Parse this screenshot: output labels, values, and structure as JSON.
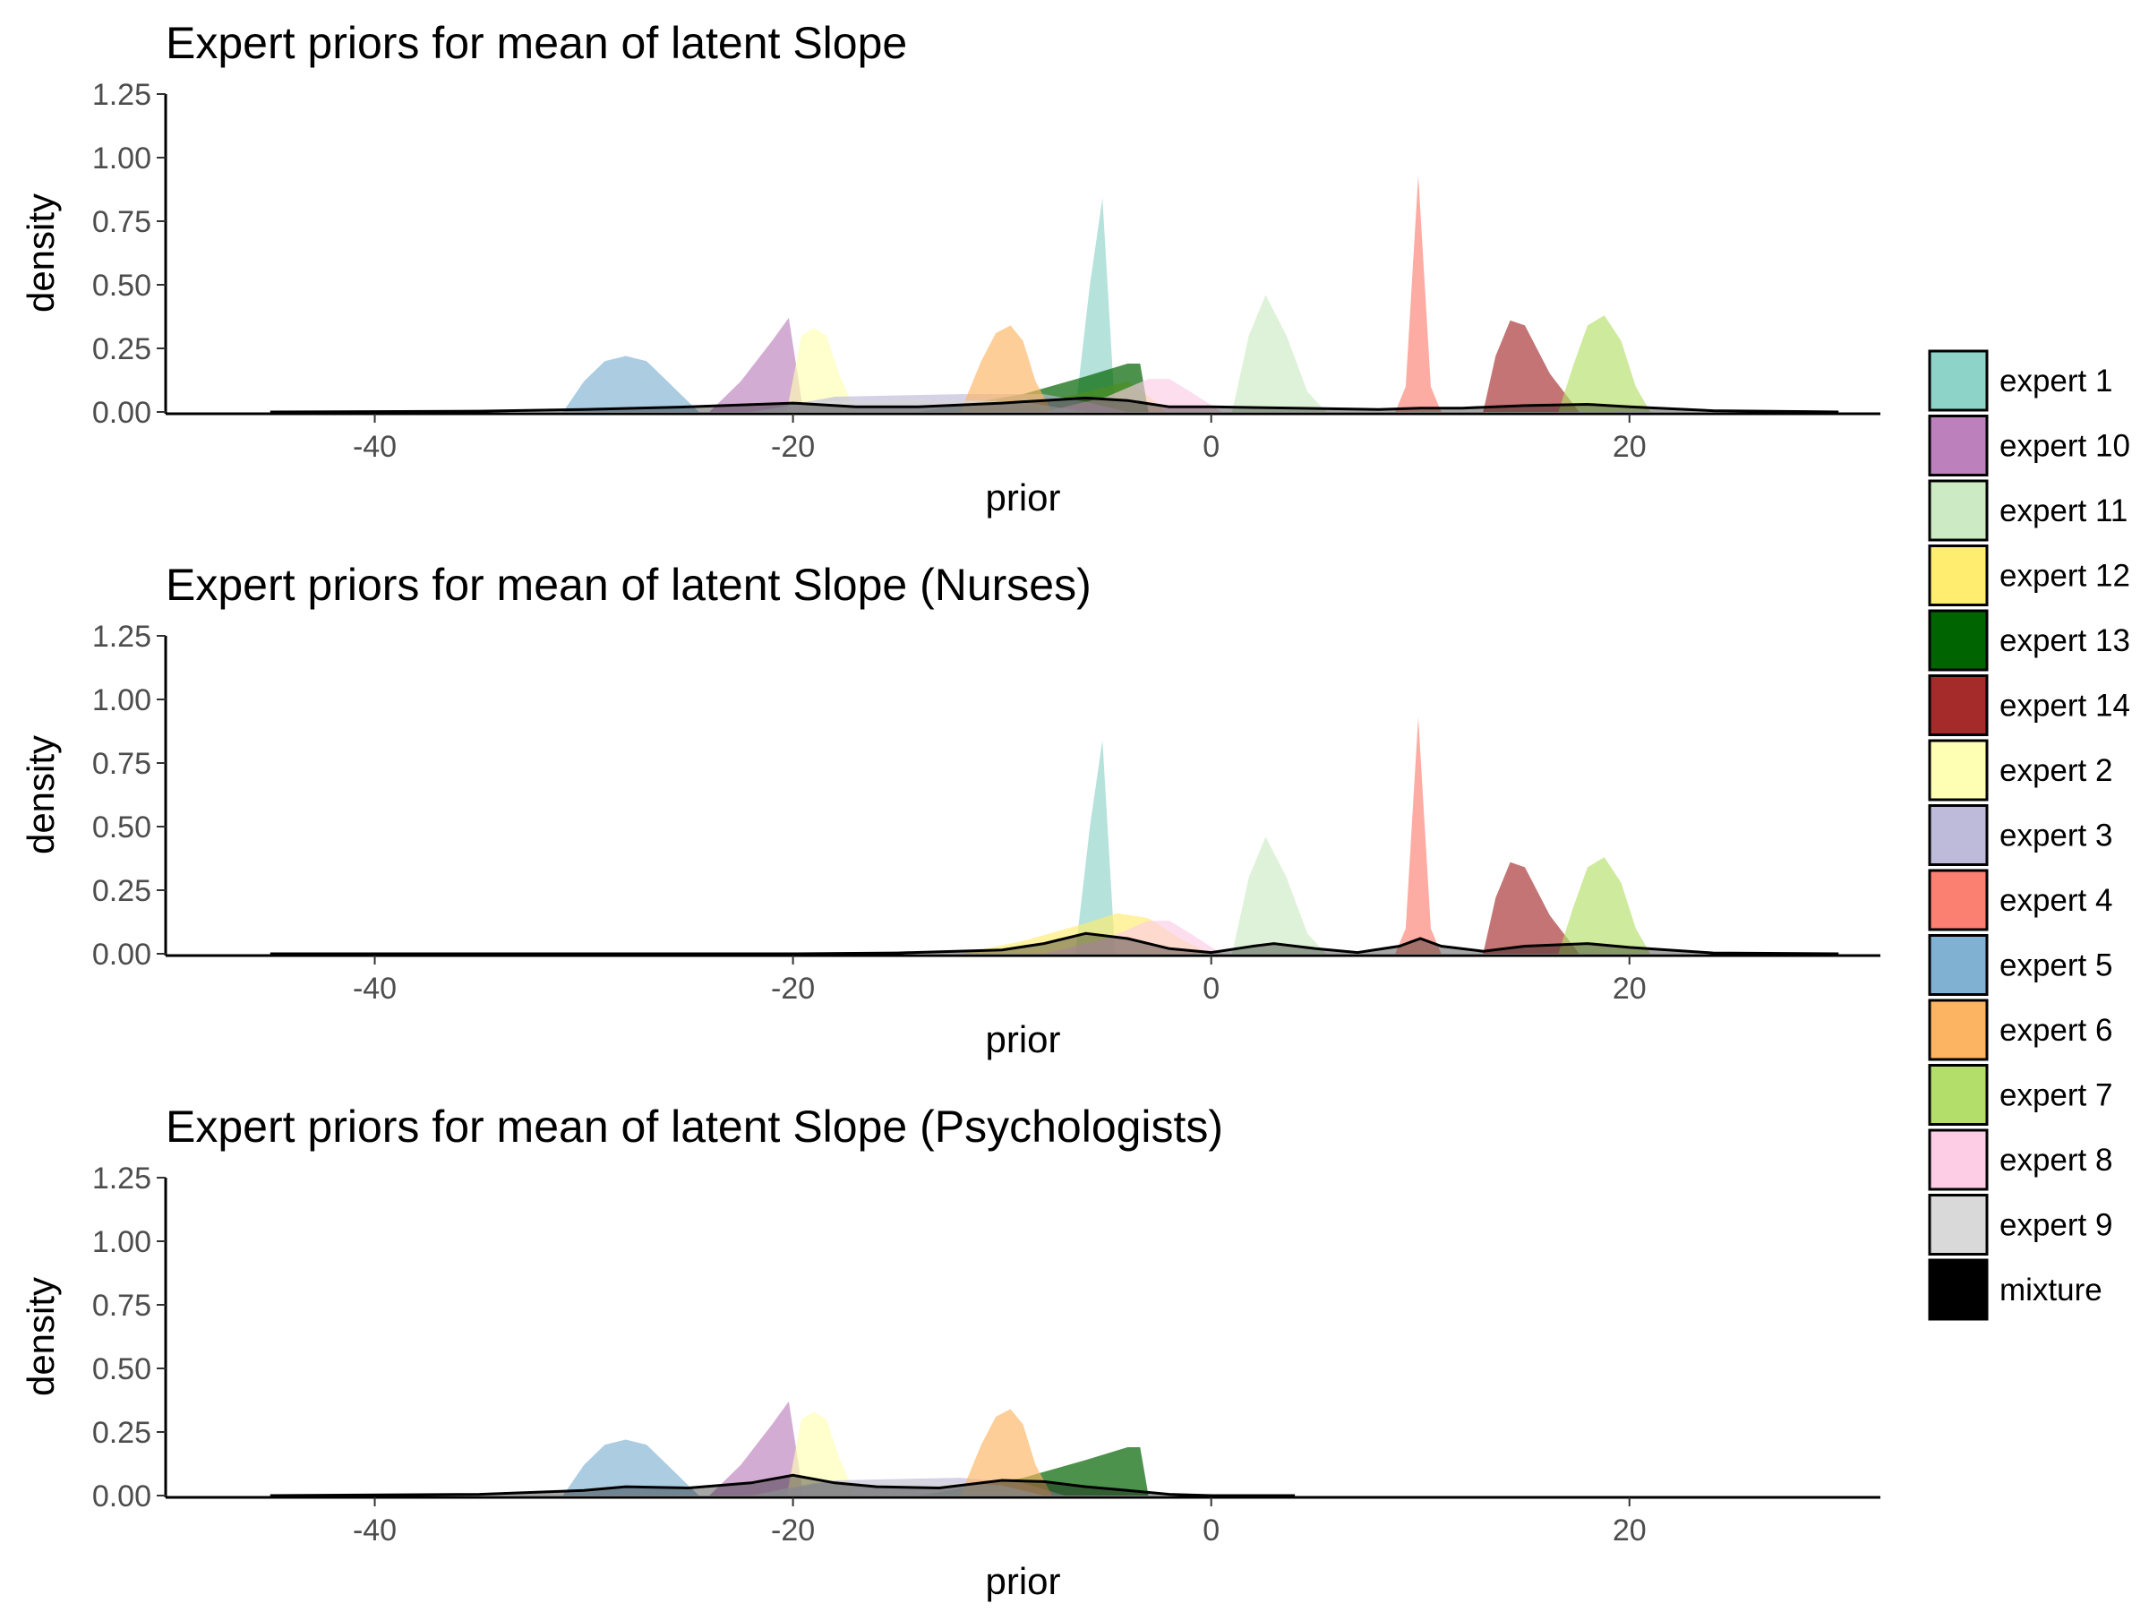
{
  "legend": {
    "items": [
      {
        "label": "expert 1",
        "color": "#8DD3C7"
      },
      {
        "label": "expert 10",
        "color": "#BC80BD"
      },
      {
        "label": "expert 11",
        "color": "#CCEBC5"
      },
      {
        "label": "expert 12",
        "color": "#FFED6F"
      },
      {
        "label": "expert 13",
        "color": "#006400"
      },
      {
        "label": "expert 14",
        "color": "#A52A2A"
      },
      {
        "label": "expert 2",
        "color": "#FFFFB3"
      },
      {
        "label": "expert 3",
        "color": "#BEBADA"
      },
      {
        "label": "expert 4",
        "color": "#FB8072"
      },
      {
        "label": "expert 5",
        "color": "#80B1D3"
      },
      {
        "label": "expert 6",
        "color": "#FDB462"
      },
      {
        "label": "expert 7",
        "color": "#B3DE69"
      },
      {
        "label": "expert 8",
        "color": "#FCCDE5"
      },
      {
        "label": "expert 9",
        "color": "#D9D9D9"
      },
      {
        "label": "mixture",
        "color": "#000000"
      }
    ]
  },
  "chart_data": [
    {
      "type": "area",
      "title": "Expert priors for mean of latent Slope",
      "xlabel": "prior",
      "ylabel": "density",
      "xlim": [
        -50,
        32
      ],
      "ylim": [
        0,
        1.25
      ],
      "x_ticks": [
        -40,
        -20,
        0,
        20
      ],
      "y_ticks": [
        0.0,
        0.25,
        0.5,
        0.75,
        1.0,
        1.25
      ],
      "x_tick_labels": [
        "-40",
        "-20",
        "0",
        "20"
      ],
      "y_tick_labels": [
        "0.00",
        "0.25",
        "0.50",
        "0.75",
        "1.00",
        "1.25"
      ],
      "grid": false,
      "legend_position": "right",
      "series": [
        {
          "name": "expert 1",
          "x": [
            -6.5,
            -5.8,
            -5.2,
            -4.6
          ],
          "y": [
            0.0,
            0.5,
            0.84,
            0.0
          ]
        },
        {
          "name": "expert 10",
          "x": [
            -24,
            -22.5,
            -21,
            -20.2,
            -19.5
          ],
          "y": [
            0.0,
            0.12,
            0.28,
            0.37,
            0.0
          ]
        },
        {
          "name": "expert 11",
          "x": [
            1.0,
            1.8,
            2.6,
            3.6,
            4.6,
            5.5
          ],
          "y": [
            0.0,
            0.3,
            0.46,
            0.3,
            0.08,
            0.0
          ]
        },
        {
          "name": "expert 12",
          "x": [
            -11,
            -7,
            -4,
            -2.8,
            -2.2
          ],
          "y": [
            0.0,
            0.06,
            0.12,
            0.05,
            0.0
          ]
        },
        {
          "name": "expert 13",
          "x": [
            -14,
            -9,
            -6,
            -4,
            -3.4,
            -3.0
          ],
          "y": [
            0.0,
            0.07,
            0.14,
            0.19,
            0.19,
            0.0
          ]
        },
        {
          "name": "expert 14",
          "x": [
            13,
            13.6,
            14.3,
            15,
            16.2,
            17.6
          ],
          "y": [
            0.0,
            0.22,
            0.36,
            0.34,
            0.15,
            0.0
          ]
        },
        {
          "name": "expert 2",
          "x": [
            -20.3,
            -19.6,
            -19.0,
            -18.4,
            -17.8,
            -17.0
          ],
          "y": [
            0.0,
            0.3,
            0.33,
            0.3,
            0.15,
            0.0
          ]
        },
        {
          "name": "expert 3",
          "x": [
            -22,
            -18,
            -12,
            -8,
            -6,
            -4
          ],
          "y": [
            0.0,
            0.06,
            0.07,
            0.07,
            0.04,
            0.0
          ]
        },
        {
          "name": "expert 4",
          "x": [
            8.8,
            9.3,
            9.9,
            10.5,
            11.0
          ],
          "y": [
            0.0,
            0.1,
            0.93,
            0.1,
            0.0
          ]
        },
        {
          "name": "expert 5",
          "x": [
            -31,
            -30,
            -29,
            -28,
            -27,
            -26,
            -24.5
          ],
          "y": [
            0.0,
            0.12,
            0.2,
            0.22,
            0.2,
            0.12,
            0.0
          ]
        },
        {
          "name": "expert 6",
          "x": [
            -12,
            -11,
            -10.3,
            -9.6,
            -9.0,
            -8.4,
            -7.6
          ],
          "y": [
            0.0,
            0.2,
            0.31,
            0.34,
            0.28,
            0.12,
            0.0
          ]
        },
        {
          "name": "expert 7",
          "x": [
            16.6,
            17.3,
            18,
            18.8,
            19.6,
            20.3,
            21.0
          ],
          "y": [
            0.0,
            0.18,
            0.34,
            0.38,
            0.28,
            0.1,
            0.0
          ]
        },
        {
          "name": "expert 8",
          "x": [
            -8,
            -5,
            -3,
            -2,
            -1,
            0.5
          ],
          "y": [
            0.0,
            0.06,
            0.13,
            0.13,
            0.08,
            0.0
          ]
        },
        {
          "name": "expert 9",
          "x": [
            -22,
            -19,
            -14,
            -9,
            -6
          ],
          "y": [
            0.0,
            0.04,
            0.05,
            0.04,
            0.0
          ]
        },
        {
          "name": "mixture",
          "x": [
            -45,
            -35,
            -30,
            -25,
            -20,
            -17,
            -14,
            -10,
            -8,
            -6,
            -4,
            -2,
            0,
            4,
            8,
            10,
            12,
            15,
            18,
            20,
            24,
            30
          ],
          "y": [
            0.0,
            0.003,
            0.01,
            0.02,
            0.035,
            0.02,
            0.02,
            0.035,
            0.045,
            0.055,
            0.045,
            0.02,
            0.02,
            0.015,
            0.01,
            0.015,
            0.015,
            0.025,
            0.03,
            0.02,
            0.005,
            0.0
          ]
        }
      ]
    },
    {
      "type": "area",
      "title": "Expert priors for mean of latent Slope (Nurses)",
      "xlabel": "prior",
      "ylabel": "density",
      "xlim": [
        -50,
        32
      ],
      "ylim": [
        0,
        1.25
      ],
      "x_ticks": [
        -40,
        -20,
        0,
        20
      ],
      "y_ticks": [
        0.0,
        0.25,
        0.5,
        0.75,
        1.0,
        1.25
      ],
      "x_tick_labels": [
        "-40",
        "-20",
        "0",
        "20"
      ],
      "y_tick_labels": [
        "0.00",
        "0.25",
        "0.50",
        "0.75",
        "1.00",
        "1.25"
      ],
      "grid": false,
      "legend_position": "right",
      "series": [
        {
          "name": "expert 1",
          "x": [
            -6.5,
            -5.8,
            -5.2,
            -4.6
          ],
          "y": [
            0.0,
            0.5,
            0.84,
            0.0
          ]
        },
        {
          "name": "expert 11",
          "x": [
            1.0,
            1.8,
            2.6,
            3.6,
            4.6,
            5.5
          ],
          "y": [
            0.0,
            0.3,
            0.46,
            0.3,
            0.08,
            0.0
          ]
        },
        {
          "name": "expert 12",
          "x": [
            -12,
            -9,
            -6,
            -4.5,
            -3,
            -1.5,
            0
          ],
          "y": [
            0.0,
            0.05,
            0.12,
            0.16,
            0.14,
            0.06,
            0.0
          ]
        },
        {
          "name": "expert 14",
          "x": [
            13,
            13.6,
            14.3,
            15,
            16.2,
            17.6
          ],
          "y": [
            0.0,
            0.22,
            0.36,
            0.34,
            0.15,
            0.0
          ]
        },
        {
          "name": "expert 4",
          "x": [
            8.8,
            9.3,
            9.9,
            10.5,
            11.0
          ],
          "y": [
            0.0,
            0.1,
            0.93,
            0.1,
            0.0
          ]
        },
        {
          "name": "expert 7",
          "x": [
            16.6,
            17.3,
            18,
            18.8,
            19.6,
            20.3,
            21.0
          ],
          "y": [
            0.0,
            0.18,
            0.34,
            0.38,
            0.28,
            0.1,
            0.0
          ]
        },
        {
          "name": "expert 8",
          "x": [
            -8,
            -5,
            -3,
            -2,
            -1,
            0.5
          ],
          "y": [
            0.0,
            0.06,
            0.13,
            0.13,
            0.08,
            0.0
          ]
        },
        {
          "name": "mixture",
          "x": [
            -45,
            -20,
            -15,
            -10,
            -8,
            -6,
            -4,
            -2,
            0,
            2,
            3,
            5,
            7,
            9,
            10,
            11,
            13,
            15,
            18,
            20,
            24,
            30
          ],
          "y": [
            0.0,
            0.0,
            0.003,
            0.015,
            0.04,
            0.08,
            0.06,
            0.02,
            0.005,
            0.03,
            0.04,
            0.02,
            0.005,
            0.03,
            0.06,
            0.03,
            0.01,
            0.03,
            0.04,
            0.025,
            0.003,
            0.0
          ]
        }
      ]
    },
    {
      "type": "area",
      "title": "Expert priors for mean of latent Slope (Psychologists)",
      "xlabel": "prior",
      "ylabel": "density",
      "xlim": [
        -50,
        32
      ],
      "ylim": [
        0,
        1.25
      ],
      "x_ticks": [
        -40,
        -20,
        0,
        20
      ],
      "y_ticks": [
        0.0,
        0.25,
        0.5,
        0.75,
        1.0,
        1.25
      ],
      "x_tick_labels": [
        "-40",
        "-20",
        "0",
        "20"
      ],
      "y_tick_labels": [
        "0.00",
        "0.25",
        "0.50",
        "0.75",
        "1.00",
        "1.25"
      ],
      "grid": false,
      "legend_position": "right",
      "series": [
        {
          "name": "expert 10",
          "x": [
            -24,
            -22.5,
            -21,
            -20.2,
            -19.5
          ],
          "y": [
            0.0,
            0.12,
            0.28,
            0.37,
            0.0
          ]
        },
        {
          "name": "expert 13",
          "x": [
            -14,
            -9,
            -6,
            -4,
            -3.4,
            -3.0
          ],
          "y": [
            0.0,
            0.07,
            0.14,
            0.19,
            0.19,
            0.0
          ]
        },
        {
          "name": "expert 2",
          "x": [
            -20.3,
            -19.6,
            -19.0,
            -18.4,
            -17.8,
            -17.0
          ],
          "y": [
            0.0,
            0.3,
            0.33,
            0.3,
            0.15,
            0.0
          ]
        },
        {
          "name": "expert 3",
          "x": [
            -22,
            -18,
            -12,
            -9,
            -7
          ],
          "y": [
            0.0,
            0.06,
            0.07,
            0.05,
            0.0
          ]
        },
        {
          "name": "expert 5",
          "x": [
            -31,
            -30,
            -29,
            -28,
            -27,
            -26,
            -24.5
          ],
          "y": [
            0.0,
            0.12,
            0.2,
            0.22,
            0.2,
            0.12,
            0.0
          ]
        },
        {
          "name": "expert 6",
          "x": [
            -12,
            -11,
            -10.3,
            -9.6,
            -9.0,
            -8.4,
            -7.6
          ],
          "y": [
            0.0,
            0.2,
            0.31,
            0.34,
            0.28,
            0.12,
            0.0
          ]
        },
        {
          "name": "expert 9",
          "x": [
            -22,
            -19,
            -14,
            -10,
            -8
          ],
          "y": [
            0.0,
            0.05,
            0.06,
            0.04,
            0.0
          ]
        },
        {
          "name": "mixture",
          "x": [
            -45,
            -35,
            -30,
            -28,
            -25,
            -22,
            -20,
            -18,
            -16,
            -13,
            -10,
            -8,
            -6,
            -4,
            -2,
            0,
            4
          ],
          "y": [
            0.0,
            0.005,
            0.02,
            0.035,
            0.03,
            0.05,
            0.08,
            0.05,
            0.035,
            0.03,
            0.06,
            0.055,
            0.035,
            0.02,
            0.005,
            0.0,
            0.0
          ]
        }
      ]
    }
  ]
}
